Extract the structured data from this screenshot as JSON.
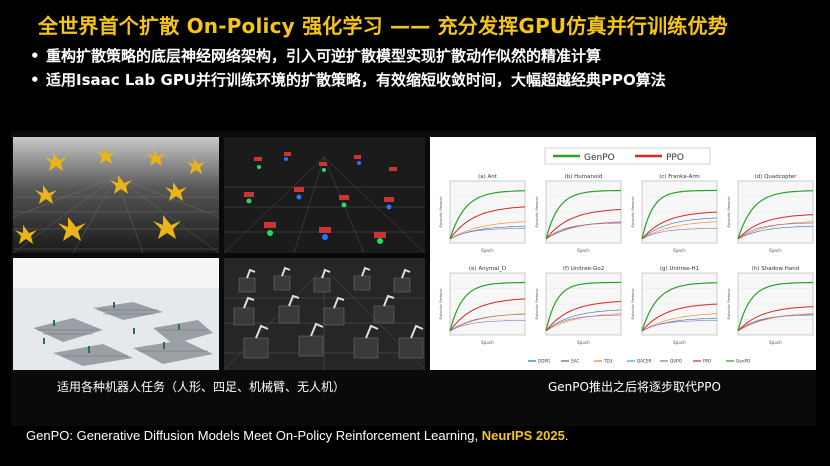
{
  "title": "全世界首个扩散 On-Policy 强化学习 —— 充分发挥GPU仿真并行训练优势",
  "bullets": [
    "重构扩散策略的底层神经网络架构，引入可逆扩散模型实现扩散动作似然的精准计算",
    "适用Isaac Lab GPU并行训练环境的扩散策略，有效缩短收敛时间，大幅超越经典PPO算法"
  ],
  "caption_left": "适用各种机器人任务（人形、四足、机械臂、无人机）",
  "caption_right": "GenPO推出之后将逐步取代PPO",
  "footer": {
    "text": "GenPO: Generative Diffusion Models Meet On-Policy Reinforcement Learning, ",
    "venue": "NeurIPS 2025",
    "end": "."
  },
  "colors": {
    "title": "#f5c518",
    "genpo": "#2ca02c",
    "ppo": "#d62728"
  },
  "chart_legend": [
    "GenPO",
    "PPO"
  ],
  "chart_ylabel": "Episodic Reward",
  "chart_xlabel": "Epoch",
  "subplots": [
    "(a) Ant",
    "(b) Humanoid",
    "(c) Franka-Arm",
    "(d) Quadcopter",
    "(e) Anymal_D",
    "(f) Unitree-Go2",
    "(g) Unitree-H1",
    "(h) Shadow Hand"
  ],
  "bottom_legend": [
    "DDPG",
    "SAC",
    "TD3",
    "DACER",
    "QVPO",
    "PPO",
    "GenPO"
  ]
}
